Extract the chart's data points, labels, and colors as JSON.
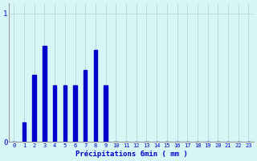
{
  "xlabel": "Précipitations 6min ( mm )",
  "ylabel": "",
  "background_color": "#d8f5f5",
  "bar_color": "#0000cc",
  "grid_color": "#b0dede",
  "axis_color": "#999999",
  "text_color": "#0000cc",
  "ylim": [
    0,
    1.08
  ],
  "xlim": [
    -0.5,
    23.5
  ],
  "yticks": [
    0,
    1
  ],
  "xticks": [
    0,
    1,
    2,
    3,
    4,
    5,
    6,
    7,
    8,
    9,
    10,
    11,
    12,
    13,
    14,
    15,
    16,
    17,
    18,
    19,
    20,
    21,
    22,
    23
  ],
  "values": [
    0,
    0.15,
    0.52,
    0.75,
    0.44,
    0.44,
    0.44,
    0.56,
    0.72,
    0.44,
    0,
    0,
    0,
    0,
    0,
    0,
    0,
    0,
    0,
    0,
    0,
    0,
    0,
    0
  ],
  "bar_width": 0.35
}
